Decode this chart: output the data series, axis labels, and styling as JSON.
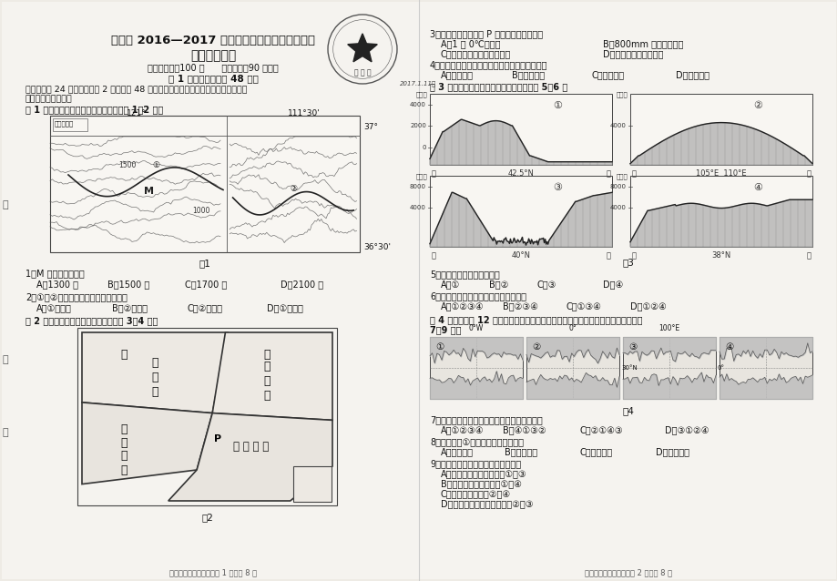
{
  "bg_color": "#f0eeea",
  "title_main": "温江区 2016—2017 学年度上期期末学业质量检测",
  "title_sub": "高二地理试题",
  "subtitle_info": "（全卷满分：100 分      完成时间：90 分钟）",
  "subtitle_section": "第 1 卷（选择题，共 48 分）",
  "intro1": "一、本卷共 24 小题，每小题 2 分，共计 48 分。在每小题列出的四个选项中，只有一项",
  "intro2": "是符合题目要求的。",
  "fig1_caption": "图 1 为我国某地零高程地形图。据此完成 1～2 题。",
  "fig1_label_left": "季节性河流",
  "fig1_coord_121": "121°",
  "fig1_coord_111": "111°30'",
  "fig1_label_37": "37°",
  "fig1_label_1500": "1500",
  "fig1_label_1000": "1000",
  "fig1_label_3630": "36°30'",
  "fig1_title": "图1",
  "q1_text": "1．M 地的海拔可能为",
  "q1_a": "A．1300 米",
  "q1_b": "B．1500 米",
  "q1_c": "C．1700 米",
  "q1_d": "D．2100 米",
  "q2_text": "2．①、②两河曲中，河岸坡度更陡的是",
  "q2_a": "A．①的东岸",
  "q2_b": "B．②的西岸",
  "q2_c": "C．②的东岸",
  "q2_d": "D．①的西岸",
  "fig2_caption": "图 2 为我国四大地理区域图。读图回答 3～4 题。",
  "fig2_title": "图2",
  "footer_left": "高二上期期末地理试题第 1 页，总 8 页",
  "q3_text": "3．下列有关地理界线 P 的说法错误的一项是",
  "q3_a": "A．1 月 0℃等温线",
  "q3_b": "B．800mm 年等降水量线",
  "q3_c": "C．暖温带和中温带的分界线",
  "q3_d": "D．旱地和水田的分界线",
  "q4_text": "4．下列山脉位于青藏地区和南方地区交界处的是",
  "q4_a": "A．昆仑山脉",
  "q4_b": "B．贺兰山脉",
  "q4_c": "C．横断山脉",
  "q4_d": "D．秦岭山脉",
  "fig3_caption": "图 3 为我国四大盆地地形剖面图。读图回答 5～6 题",
  "fig3_title": "图3",
  "q5_text": "5．上图中表示四川盆地的是",
  "q5_a": "A．①",
  "q5_b": "B．②",
  "q5_c": "C．③",
  "q5_d": "D．④",
  "q6_text": "6．位于我国地势第二级阶梯上的盆地是",
  "q6_a": "A．①②③④",
  "q6_b": "B．②③④",
  "q6_c": "C．①③④",
  "q6_d": "D．①②④",
  "fig4_caption1": "图 4 一艘货轮于 12 月初由荷兰鹿特丹港口出发驶往上海，历时经两个月，据图回答",
  "fig4_caption2": "7～9 题。",
  "fig4_title": "图4",
  "q7_text": "7．选择最近路线航行，货轮经过的海峡依次是",
  "q7_a": "A．①②③④",
  "q7_b": "B．④①③②",
  "q7_c": "C．②①④③",
  "q7_d": "D．③①②④",
  "q8_text": "8．货轮通过①海峡时，其航行情况是",
  "q8_a": "A．顺风顺水",
  "q8_b": "B．顺风逆水",
  "q8_c": "C．逆风顺水",
  "q8_d": "D．逆风逆水",
  "q9_text": "9．下列有关四个海峡的说法正确的是",
  "q9_a": "A．处于板块生长边界的是①和③",
  "q9_b": "B．属于大洲分界线的是①和④",
  "q9_c": "C．沟通两大洋的是②和④",
  "q9_d": "D．两岸属于发展中国家的是②和③",
  "footer_right": "高二上期期末地理试题第 2 页，总 8 页",
  "stamp_text1": "教务处",
  "stamp_date": "2017.1.11后"
}
